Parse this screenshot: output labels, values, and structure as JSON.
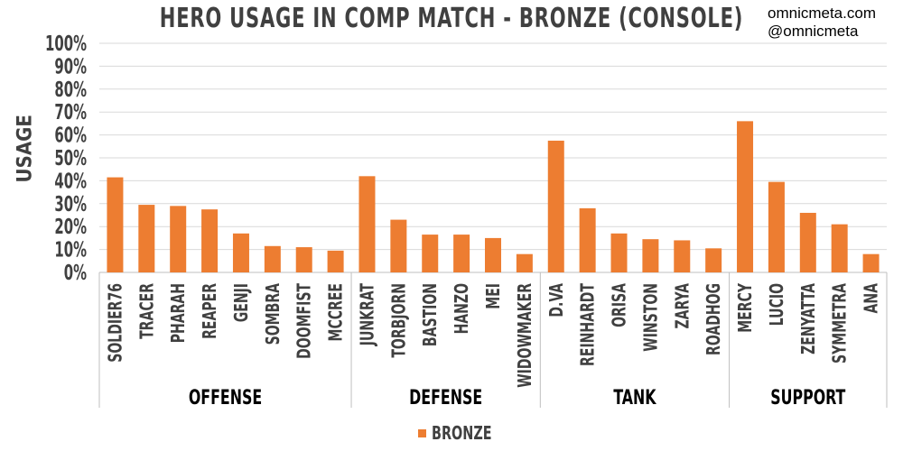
{
  "header": {
    "title": "HERO USAGE IN COMP MATCH - BRONZE (CONSOLE)",
    "credit_site": "omnicmeta.com",
    "credit_handle": "@omnicmeta"
  },
  "colors": {
    "bar": "#ed7d31",
    "grid": "#d9d9d9",
    "text": "#404040"
  },
  "chart_data": {
    "type": "bar",
    "title": "HERO USAGE IN COMP MATCH - BRONZE (CONSOLE)",
    "ylabel": "USAGE",
    "xlabel": "",
    "ylim": [
      0,
      100
    ],
    "y_ticks": [
      "0%",
      "10%",
      "20%",
      "30%",
      "40%",
      "50%",
      "60%",
      "70%",
      "80%",
      "90%",
      "100%"
    ],
    "grid": true,
    "legend": {
      "position": "bottom",
      "entries": [
        "BRONZE"
      ]
    },
    "categories": [
      "SOLDIER76",
      "TRACER",
      "PHARAH",
      "REAPER",
      "GENJI",
      "SOMBRA",
      "DOOMFIST",
      "MCCREE",
      "JUNKRAT",
      "TORBJORN",
      "BASTION",
      "HANZO",
      "MEI",
      "WIDOWMAKER",
      "D.VA",
      "REINHARDT",
      "ORISA",
      "WINSTON",
      "ZARYA",
      "ROADHOG",
      "MERCY",
      "LUCIO",
      "ZENYATTA",
      "SYMMETRA",
      "ANA"
    ],
    "groups": [
      {
        "name": "OFFENSE",
        "count": 8
      },
      {
        "name": "DEFENSE",
        "count": 6
      },
      {
        "name": "TANK",
        "count": 6
      },
      {
        "name": "SUPPORT",
        "count": 5
      }
    ],
    "series": [
      {
        "name": "BRONZE",
        "values": [
          41.5,
          29.5,
          29,
          27.5,
          17,
          11.5,
          11,
          9.5,
          42,
          23,
          16.5,
          16.5,
          15,
          8,
          57.5,
          28,
          17,
          14.5,
          14,
          10.5,
          66,
          39.5,
          26,
          21,
          8
        ]
      }
    ]
  }
}
